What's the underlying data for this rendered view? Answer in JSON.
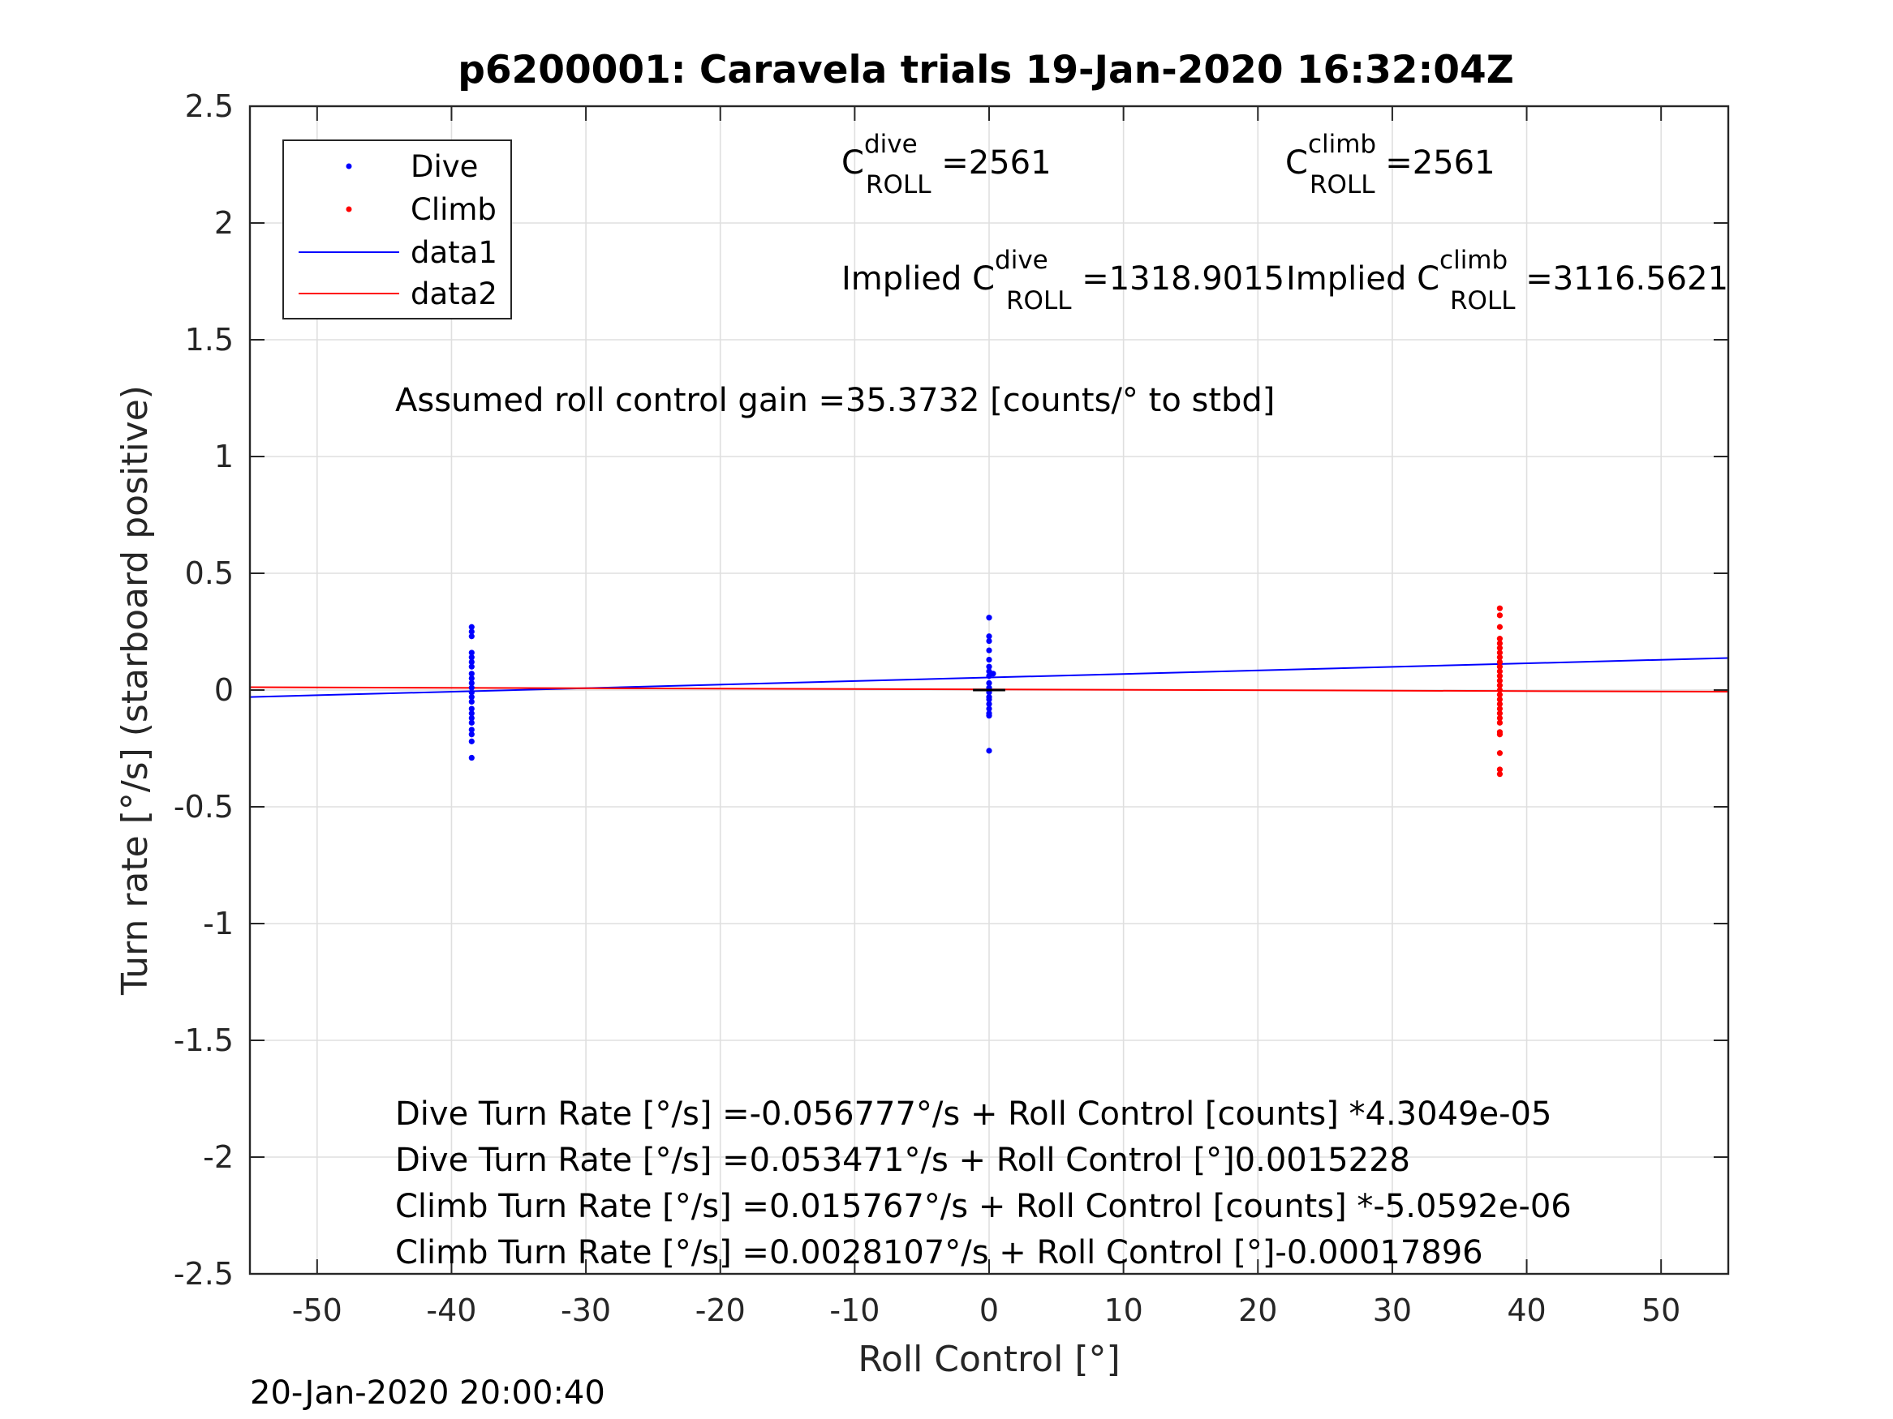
{
  "chart_data": {
    "type": "scatter",
    "title": "p6200001: Caravela trials 19-Jan-2020 16:32:04Z",
    "xlabel": "Roll Control [°]",
    "ylabel": "Turn rate [°/s] (starboard positive)",
    "xlim": [
      -55,
      55
    ],
    "ylim": [
      -2.5,
      2.5
    ],
    "xticks": [
      -50,
      -40,
      -30,
      -20,
      -10,
      0,
      10,
      20,
      30,
      40,
      50
    ],
    "yticks": [
      2.5,
      2,
      1.5,
      1,
      0.5,
      0,
      -0.5,
      -1,
      -1.5,
      -2,
      -2.5
    ],
    "xtick_labels": [
      "-50",
      "-40",
      "-30",
      "-20",
      "-10",
      "0",
      "10",
      "20",
      "30",
      "40",
      "50"
    ],
    "ytick_labels": [
      "2.5",
      "2",
      "1.5",
      "1",
      "0.5",
      "0",
      "-0.5",
      "-1",
      "-1.5",
      "-2",
      "-2.5"
    ],
    "grid": true,
    "legend_position": "top-left",
    "legend": [
      "Dive",
      "Climb",
      "data1",
      "data2"
    ],
    "series": [
      {
        "name": "Dive",
        "kind": "points",
        "color": "#0000ff",
        "points": [
          [
            -38.5,
            0.27
          ],
          [
            -38.5,
            0.25
          ],
          [
            -38.5,
            0.23
          ],
          [
            -38.5,
            0.16
          ],
          [
            -38.5,
            0.14
          ],
          [
            -38.5,
            0.12
          ],
          [
            -38.5,
            0.1
          ],
          [
            -38.5,
            0.07
          ],
          [
            -38.5,
            0.05
          ],
          [
            -38.5,
            0.03
          ],
          [
            -38.5,
            0.01
          ],
          [
            -38.5,
            -0.01
          ],
          [
            -38.5,
            -0.03
          ],
          [
            -38.5,
            -0.05
          ],
          [
            -38.5,
            -0.08
          ],
          [
            -38.5,
            -0.1
          ],
          [
            -38.5,
            -0.12
          ],
          [
            -38.5,
            -0.14
          ],
          [
            -38.5,
            -0.17
          ],
          [
            -38.5,
            -0.19
          ],
          [
            -38.5,
            -0.22
          ],
          [
            -38.5,
            -0.29
          ],
          [
            0,
            0.31
          ],
          [
            0,
            0.23
          ],
          [
            0,
            0.21
          ],
          [
            0,
            0.17
          ],
          [
            0,
            0.13
          ],
          [
            0,
            0.1
          ],
          [
            0,
            0.08
          ],
          [
            0.3,
            0.07
          ],
          [
            0,
            0.06
          ],
          [
            0,
            0.03
          ],
          [
            0,
            0.01
          ],
          [
            0,
            0.0
          ],
          [
            0,
            -0.01
          ],
          [
            0,
            -0.03
          ],
          [
            0,
            -0.04
          ],
          [
            0,
            -0.06
          ],
          [
            0,
            -0.08
          ],
          [
            0,
            -0.1
          ],
          [
            0,
            -0.11
          ],
          [
            0,
            -0.26
          ]
        ]
      },
      {
        "name": "Climb",
        "kind": "points",
        "color": "#ff0000",
        "points": [
          [
            38,
            0.35
          ],
          [
            38,
            0.32
          ],
          [
            38,
            0.27
          ],
          [
            38,
            0.22
          ],
          [
            38,
            0.2
          ],
          [
            38,
            0.18
          ],
          [
            38,
            0.16
          ],
          [
            38,
            0.14
          ],
          [
            38,
            0.12
          ],
          [
            38,
            0.1
          ],
          [
            38,
            0.08
          ],
          [
            38,
            0.06
          ],
          [
            38,
            0.04
          ],
          [
            38,
            0.02
          ],
          [
            38,
            0.0
          ],
          [
            38,
            -0.02
          ],
          [
            38,
            -0.04
          ],
          [
            38,
            -0.06
          ],
          [
            38,
            -0.08
          ],
          [
            38,
            -0.1
          ],
          [
            38,
            -0.12
          ],
          [
            38,
            -0.14
          ],
          [
            38,
            -0.18
          ],
          [
            38,
            -0.19
          ],
          [
            38,
            -0.27
          ],
          [
            38,
            -0.34
          ],
          [
            38,
            -0.36
          ]
        ]
      },
      {
        "name": "data1",
        "kind": "line",
        "color": "#0000ff",
        "points": [
          [
            -55,
            -0.03
          ],
          [
            55,
            0.137
          ]
        ]
      },
      {
        "name": "data2",
        "kind": "line",
        "color": "#ff0000",
        "points": [
          [
            -55,
            0.012
          ],
          [
            55,
            -0.007
          ]
        ]
      }
    ],
    "zero_marker": {
      "color": "#000000",
      "points": [
        [
          -1.2,
          0.0
        ],
        [
          1.2,
          0.0
        ]
      ]
    },
    "annotations": {
      "c_dive": {
        "base": "C",
        "sup": "dive",
        "sub": "ROLL",
        "value": " =2561"
      },
      "c_climb": {
        "base": "C",
        "sup": "climb",
        "sub": "ROLL",
        "value": " =2561"
      },
      "implied_dive": {
        "base": "Implied C",
        "sup": "dive",
        "sub": "ROLL",
        "value": " =1318.9015"
      },
      "implied_climb": {
        "base": "Implied C",
        "sup": "climb",
        "sub": "ROLL",
        "value": " =3116.5621"
      },
      "gain": "Assumed roll control gain =35.3732 [counts/° to stbd]",
      "fits": [
        "Dive Turn Rate [°/s] =-0.056777°/s + Roll Control [counts] *4.3049e-05",
        "Dive Turn Rate [°/s] =0.053471°/s + Roll Control [°]0.0015228",
        "Climb Turn Rate [°/s] =0.015767°/s + Roll Control [counts] *-5.0592e-06",
        "Climb Turn Rate [°/s] =0.0028107°/s + Roll Control [°]-0.00017896"
      ]
    },
    "timestamp": "20-Jan-2020 20:00:40"
  }
}
